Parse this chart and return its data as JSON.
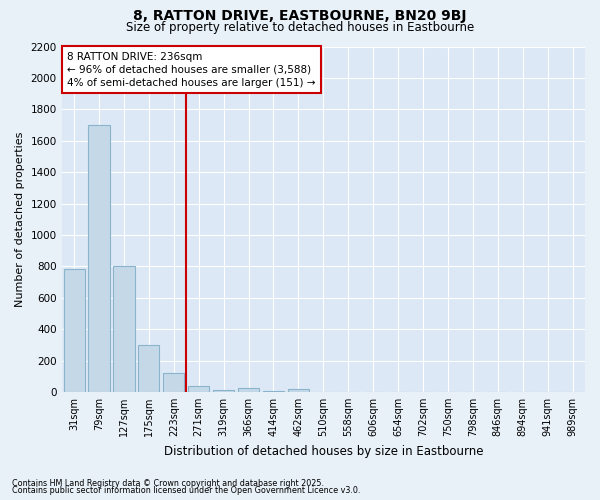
{
  "title": "8, RATTON DRIVE, EASTBOURNE, BN20 9BJ",
  "subtitle": "Size of property relative to detached houses in Eastbourne",
  "xlabel": "Distribution of detached houses by size in Eastbourne",
  "ylabel": "Number of detached properties",
  "annotation_title": "8 RATTON DRIVE: 236sqm",
  "annotation_line1": "← 96% of detached houses are smaller (3,588)",
  "annotation_line2": "4% of semi-detached houses are larger (151) →",
  "categories": [
    "31sqm",
    "79sqm",
    "127sqm",
    "175sqm",
    "223sqm",
    "271sqm",
    "319sqm",
    "366sqm",
    "414sqm",
    "462sqm",
    "510sqm",
    "558sqm",
    "606sqm",
    "654sqm",
    "702sqm",
    "750sqm",
    "798sqm",
    "846sqm",
    "894sqm",
    "941sqm",
    "989sqm"
  ],
  "values": [
    780,
    1700,
    800,
    300,
    120,
    40,
    10,
    25,
    5,
    20,
    0,
    0,
    0,
    0,
    0,
    0,
    0,
    0,
    0,
    0,
    0
  ],
  "bar_color": "#c5d8e8",
  "bar_edge_color": "#8ab4cc",
  "vline_color": "#cc0000",
  "vline_x": 4.5,
  "annotation_box_color": "#cc0000",
  "background_color": "#e8f0f8",
  "plot_bg_color": "#dce8f5",
  "grid_color": "#ffffff",
  "footnote1": "Contains HM Land Registry data © Crown copyright and database right 2025.",
  "footnote2": "Contains public sector information licensed under the Open Government Licence v3.0.",
  "ylim": [
    0,
    2200
  ],
  "yticks": [
    0,
    200,
    400,
    600,
    800,
    1000,
    1200,
    1400,
    1600,
    1800,
    2000,
    2200
  ]
}
